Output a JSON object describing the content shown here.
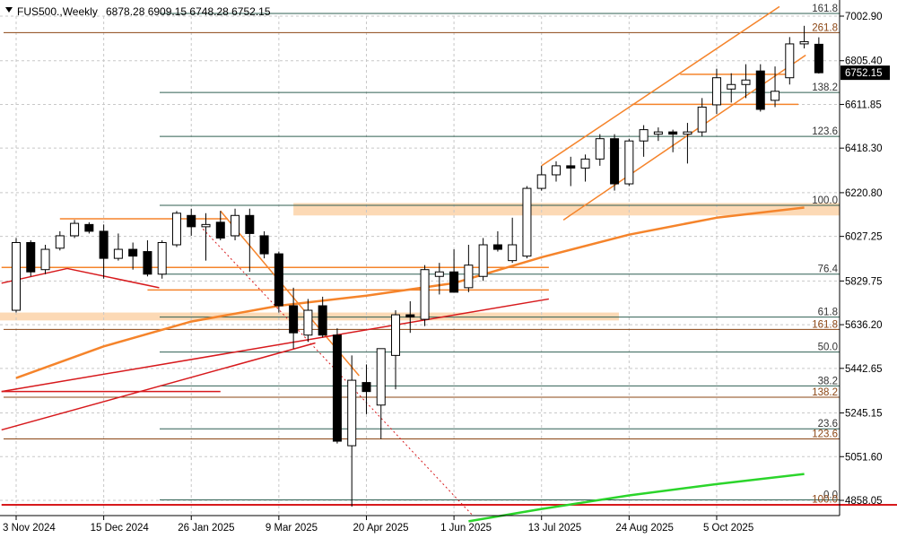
{
  "header": {
    "symbol": "FUS500.,Weekly",
    "ohlc": "6878.28 6909.15 6748.28 6752.15"
  },
  "colors": {
    "orange": "#f5842b",
    "red": "#d7191c",
    "green": "#2bd52b",
    "zone": "#fcd9b5",
    "fib_a": "#2f5f52",
    "fib_b": "#8b4513",
    "grid": "#c8c8c8"
  },
  "chart_data": {
    "type": "candlestick",
    "title": "",
    "ylim": [
      4760,
      7095
    ],
    "y_ticks": [
      7002.9,
      6805.4,
      6611.85,
      6418.3,
      6220.8,
      6027.25,
      5829.75,
      5636.2,
      5442.65,
      5245.15,
      5051.6,
      4858.05
    ],
    "y_tick_labels": [
      "7002.90",
      "6805.40",
      "6611.85",
      "6418.30",
      "6220.80",
      "6027.25",
      "5829.75",
      "5636.20",
      "5442.65",
      "5245.15",
      "5051.60",
      "4858.05"
    ],
    "x_tick_labels": [
      "3 Nov 2024",
      "15 Dec 2024",
      "26 Jan 2025",
      "9 Mar 2025",
      "20 Apr 2025",
      "1 Jun 2025",
      "13 Jul 2025",
      "24 Aug 2025",
      "5 Oct 2025"
    ],
    "x_tick_index": [
      0,
      6,
      12,
      18,
      24,
      30,
      36,
      42,
      48
    ],
    "current_price": "6752.15",
    "candles": [
      {
        "date": "2024-11-03",
        "o": 5700,
        "h": 6020,
        "l": 5690,
        "c": 6000
      },
      {
        "date": "2024-11-10",
        "o": 6000,
        "h": 6010,
        "l": 5850,
        "c": 5870
      },
      {
        "date": "2024-11-17",
        "o": 5880,
        "h": 5990,
        "l": 5860,
        "c": 5970
      },
      {
        "date": "2024-11-24",
        "o": 5975,
        "h": 6050,
        "l": 5965,
        "c": 6030
      },
      {
        "date": "2024-12-01",
        "o": 6030,
        "h": 6100,
        "l": 6020,
        "c": 6085
      },
      {
        "date": "2024-12-08",
        "o": 6080,
        "h": 6090,
        "l": 6040,
        "c": 6050
      },
      {
        "date": "2024-12-15",
        "o": 6050,
        "h": 6080,
        "l": 5840,
        "c": 5930
      },
      {
        "date": "2024-12-22",
        "o": 5930,
        "h": 6040,
        "l": 5920,
        "c": 5970
      },
      {
        "date": "2024-12-29",
        "o": 5970,
        "h": 6000,
        "l": 5880,
        "c": 5940
      },
      {
        "date": "2025-01-05",
        "o": 5960,
        "h": 6010,
        "l": 5850,
        "c": 5860
      },
      {
        "date": "2025-01-12",
        "o": 5860,
        "h": 6010,
        "l": 5840,
        "c": 6000
      },
      {
        "date": "2025-01-19",
        "o": 5990,
        "h": 6140,
        "l": 5980,
        "c": 6130
      },
      {
        "date": "2025-01-26",
        "o": 6120,
        "h": 6150,
        "l": 6030,
        "c": 6070
      },
      {
        "date": "2025-02-02",
        "o": 6070,
        "h": 6130,
        "l": 5920,
        "c": 6080
      },
      {
        "date": "2025-02-09",
        "o": 6090,
        "h": 6140,
        "l": 6010,
        "c": 6020
      },
      {
        "date": "2025-02-16",
        "o": 6030,
        "h": 6150,
        "l": 6010,
        "c": 6120
      },
      {
        "date": "2025-02-23",
        "o": 6120,
        "h": 6150,
        "l": 5870,
        "c": 6040
      },
      {
        "date": "2025-03-02",
        "o": 6030,
        "h": 6050,
        "l": 5930,
        "c": 5950
      },
      {
        "date": "2025-03-09",
        "o": 5950,
        "h": 5960,
        "l": 5690,
        "c": 5720
      },
      {
        "date": "2025-03-16",
        "o": 5720,
        "h": 5800,
        "l": 5530,
        "c": 5600
      },
      {
        "date": "2025-03-23",
        "o": 5590,
        "h": 5750,
        "l": 5560,
        "c": 5700
      },
      {
        "date": "2025-03-30",
        "o": 5720,
        "h": 5760,
        "l": 5580,
        "c": 5590
      },
      {
        "date": "2025-04-06",
        "o": 5590,
        "h": 5620,
        "l": 5110,
        "c": 5120
      },
      {
        "date": "2025-04-13",
        "o": 5100,
        "h": 5500,
        "l": 4830,
        "c": 5390
      },
      {
        "date": "2025-04-20",
        "o": 5380,
        "h": 5460,
        "l": 5240,
        "c": 5340
      },
      {
        "date": "2025-04-27",
        "o": 5280,
        "h": 5530,
        "l": 5130,
        "c": 5530
      },
      {
        "date": "2025-05-04",
        "o": 5500,
        "h": 5700,
        "l": 5350,
        "c": 5680
      },
      {
        "date": "2025-05-11",
        "o": 5680,
        "h": 5740,
        "l": 5600,
        "c": 5670
      },
      {
        "date": "2025-05-18",
        "o": 5660,
        "h": 5900,
        "l": 5630,
        "c": 5880
      },
      {
        "date": "2025-05-25",
        "o": 5850,
        "h": 5910,
        "l": 5770,
        "c": 5870
      },
      {
        "date": "2025-06-01",
        "o": 5870,
        "h": 5970,
        "l": 5800,
        "c": 5780
      },
      {
        "date": "2025-06-08",
        "o": 5800,
        "h": 5990,
        "l": 5780,
        "c": 5900
      },
      {
        "date": "2025-06-15",
        "o": 5850,
        "h": 6020,
        "l": 5830,
        "c": 5990
      },
      {
        "date": "2025-06-22",
        "o": 5990,
        "h": 6050,
        "l": 5960,
        "c": 5970
      },
      {
        "date": "2025-06-29",
        "o": 5920,
        "h": 6110,
        "l": 5910,
        "c": 5990
      },
      {
        "date": "2025-07-06",
        "o": 5940,
        "h": 6250,
        "l": 5930,
        "c": 6240
      },
      {
        "date": "2025-07-13",
        "o": 6240,
        "h": 6340,
        "l": 6230,
        "c": 6300
      },
      {
        "date": "2025-07-20",
        "o": 6300,
        "h": 6360,
        "l": 6270,
        "c": 6340
      },
      {
        "date": "2025-07-27",
        "o": 6340,
        "h": 6380,
        "l": 6250,
        "c": 6330
      },
      {
        "date": "2025-08-03",
        "o": 6330,
        "h": 6390,
        "l": 6270,
        "c": 6370
      },
      {
        "date": "2025-08-10",
        "o": 6370,
        "h": 6480,
        "l": 6340,
        "c": 6460
      },
      {
        "date": "2025-08-17",
        "o": 6460,
        "h": 6480,
        "l": 6230,
        "c": 6260
      },
      {
        "date": "2025-08-24",
        "o": 6260,
        "h": 6460,
        "l": 6250,
        "c": 6450
      },
      {
        "date": "2025-08-31",
        "o": 6450,
        "h": 6520,
        "l": 6380,
        "c": 6500
      },
      {
        "date": "2025-09-07",
        "o": 6480,
        "h": 6510,
        "l": 6450,
        "c": 6490
      },
      {
        "date": "2025-09-14",
        "o": 6490,
        "h": 6500,
        "l": 6400,
        "c": 6480
      },
      {
        "date": "2025-09-21",
        "o": 6480,
        "h": 6530,
        "l": 6350,
        "c": 6490
      },
      {
        "date": "2025-09-28",
        "o": 6490,
        "h": 6640,
        "l": 6470,
        "c": 6600
      },
      {
        "date": "2025-10-05",
        "o": 6610,
        "h": 6770,
        "l": 6570,
        "c": 6730
      },
      {
        "date": "2025-10-12",
        "o": 6680,
        "h": 6750,
        "l": 6620,
        "c": 6700
      },
      {
        "date": "2025-10-19",
        "o": 6700,
        "h": 6790,
        "l": 6640,
        "c": 6720
      },
      {
        "date": "2025-10-26",
        "o": 6760,
        "h": 6790,
        "l": 6580,
        "c": 6590
      },
      {
        "date": "2025-11-02",
        "o": 6630,
        "h": 6780,
        "l": 6600,
        "c": 6670
      },
      {
        "date": "2025-11-09",
        "o": 6730,
        "h": 6910,
        "l": 6700,
        "c": 6880
      },
      {
        "date": "2025-11-16",
        "o": 6880,
        "h": 6960,
        "l": 6860,
        "c": 6890
      },
      {
        "date": "2025-11-23",
        "o": 6878.28,
        "h": 6909.15,
        "l": 6748.28,
        "c": 6752.15
      }
    ],
    "fib_levels": [
      {
        "label": "161.8",
        "value": 7015,
        "group": "a"
      },
      {
        "label": "261.8",
        "value": 6930,
        "group": "b"
      },
      {
        "label": "138.2",
        "value": 6665,
        "group": "a"
      },
      {
        "label": "123.6",
        "value": 6470,
        "group": "a"
      },
      {
        "label": "100.0",
        "value": 6165,
        "group": "a"
      },
      {
        "label": "76.4",
        "value": 5860,
        "group": "a"
      },
      {
        "label": "61.8",
        "value": 5670,
        "group": "a"
      },
      {
        "label": "161.8",
        "value": 5615,
        "group": "b"
      },
      {
        "label": "50.0",
        "value": 5515,
        "group": "a"
      },
      {
        "label": "38.2",
        "value": 5365,
        "group": "a"
      },
      {
        "label": "138.2",
        "value": 5315,
        "group": "b"
      },
      {
        "label": "23.6",
        "value": 5175,
        "group": "a"
      },
      {
        "label": "123.6",
        "value": 5130,
        "group": "b"
      },
      {
        "label": "0.0",
        "value": 4860,
        "group": "a"
      },
      {
        "label": "100.0",
        "value": 4840,
        "group": "b"
      }
    ],
    "moving_average_orange": [
      {
        "i": 0,
        "v": 5400
      },
      {
        "i": 6,
        "v": 5540
      },
      {
        "i": 12,
        "v": 5650
      },
      {
        "i": 18,
        "v": 5720
      },
      {
        "i": 24,
        "v": 5765
      },
      {
        "i": 30,
        "v": 5820
      },
      {
        "i": 36,
        "v": 5935
      },
      {
        "i": 42,
        "v": 6035
      },
      {
        "i": 48,
        "v": 6110
      },
      {
        "i": 54,
        "v": 6155
      }
    ],
    "moving_average_green": [
      {
        "i": 31,
        "v": 4765
      },
      {
        "i": 36,
        "v": 4820
      },
      {
        "i": 42,
        "v": 4880
      },
      {
        "i": 48,
        "v": 4930
      },
      {
        "i": 54,
        "v": 4975
      }
    ]
  }
}
